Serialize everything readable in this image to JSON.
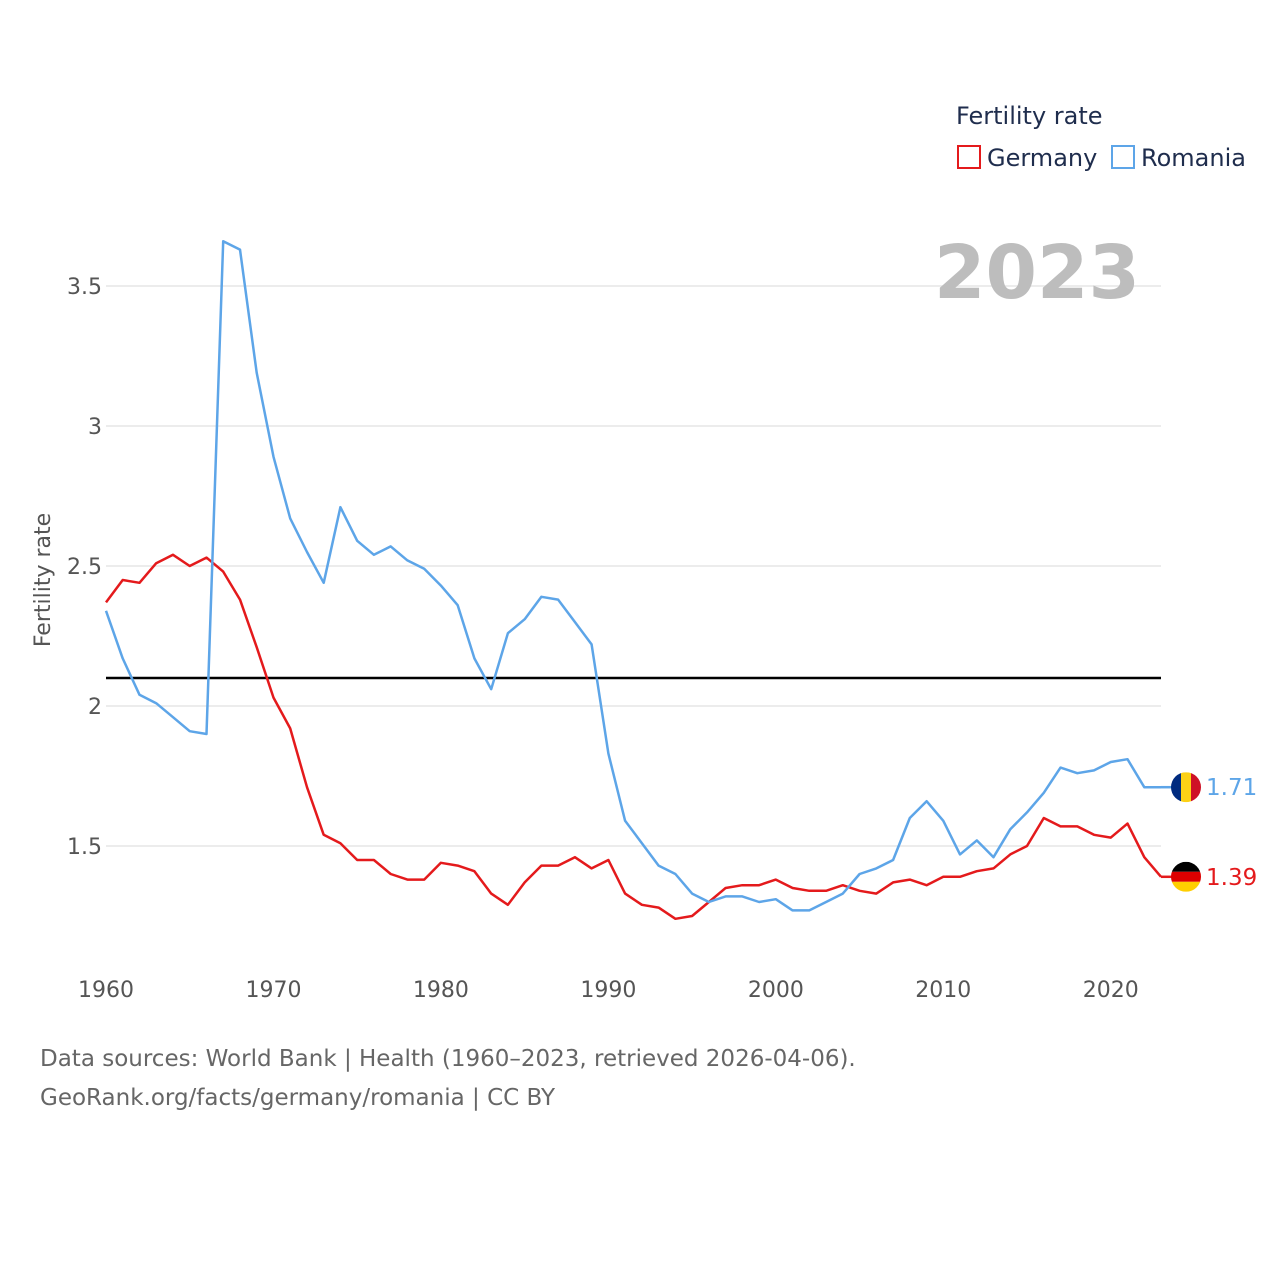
{
  "chart_data": {
    "type": "line",
    "ylabel": "Fertility rate",
    "xlabel": "",
    "xlim": [
      1960,
      2023
    ],
    "ylim": [
      1.1,
      3.7
    ],
    "x_ticks": [
      1960,
      1970,
      1980,
      1990,
      2000,
      2010,
      2020
    ],
    "y_ticks": [
      1.5,
      2,
      2.5,
      3,
      3.5
    ],
    "y_tick_labels": [
      "1.5",
      "2",
      "2.5",
      "3",
      "3.5"
    ],
    "reference_line": 2.1,
    "legend": {
      "title": "Fertility rate",
      "placement": "top-right"
    },
    "current_year": "2023",
    "x": [
      1960,
      1961,
      1962,
      1963,
      1964,
      1965,
      1966,
      1967,
      1968,
      1969,
      1970,
      1971,
      1972,
      1973,
      1974,
      1975,
      1976,
      1977,
      1978,
      1979,
      1980,
      1981,
      1982,
      1983,
      1984,
      1985,
      1986,
      1987,
      1988,
      1989,
      1990,
      1991,
      1992,
      1993,
      1994,
      1995,
      1996,
      1997,
      1998,
      1999,
      2000,
      2001,
      2002,
      2003,
      2004,
      2005,
      2006,
      2007,
      2008,
      2009,
      2010,
      2011,
      2012,
      2013,
      2014,
      2015,
      2016,
      2017,
      2018,
      2019,
      2020,
      2021,
      2022,
      2023
    ],
    "series": [
      {
        "name": "Germany",
        "color": "#e41a1c",
        "end_label": "1.39",
        "flag": "germany-flag-icon",
        "values": [
          2.37,
          2.45,
          2.44,
          2.51,
          2.54,
          2.5,
          2.53,
          2.48,
          2.38,
          2.21,
          2.03,
          1.92,
          1.71,
          1.54,
          1.51,
          1.45,
          1.45,
          1.4,
          1.38,
          1.38,
          1.44,
          1.43,
          1.41,
          1.33,
          1.29,
          1.37,
          1.43,
          1.43,
          1.46,
          1.42,
          1.45,
          1.33,
          1.29,
          1.28,
          1.24,
          1.25,
          1.3,
          1.35,
          1.36,
          1.36,
          1.38,
          1.35,
          1.34,
          1.34,
          1.36,
          1.34,
          1.33,
          1.37,
          1.38,
          1.36,
          1.39,
          1.39,
          1.41,
          1.42,
          1.47,
          1.5,
          1.6,
          1.57,
          1.57,
          1.54,
          1.53,
          1.58,
          1.46,
          1.39
        ]
      },
      {
        "name": "Romania",
        "color": "#5da5e8",
        "end_label": "1.71",
        "flag": "romania-flag-icon",
        "values": [
          2.34,
          2.17,
          2.04,
          2.01,
          1.96,
          1.91,
          1.9,
          3.66,
          3.63,
          3.19,
          2.89,
          2.67,
          2.55,
          2.44,
          2.71,
          2.59,
          2.54,
          2.57,
          2.52,
          2.49,
          2.43,
          2.36,
          2.17,
          2.06,
          2.26,
          2.31,
          2.39,
          2.38,
          2.3,
          2.22,
          1.83,
          1.59,
          1.51,
          1.43,
          1.4,
          1.33,
          1.3,
          1.32,
          1.32,
          1.3,
          1.31,
          1.27,
          1.27,
          1.3,
          1.33,
          1.4,
          1.42,
          1.45,
          1.6,
          1.66,
          1.59,
          1.47,
          1.52,
          1.46,
          1.56,
          1.62,
          1.69,
          1.78,
          1.76,
          1.77,
          1.8,
          1.81,
          1.71,
          1.71
        ]
      }
    ]
  },
  "footer": {
    "line1": "Data sources: World Bank | Health (1960–2023, retrieved 2026-04-06).",
    "line2": "GeoRank.org/facts/germany/romania | CC BY"
  }
}
